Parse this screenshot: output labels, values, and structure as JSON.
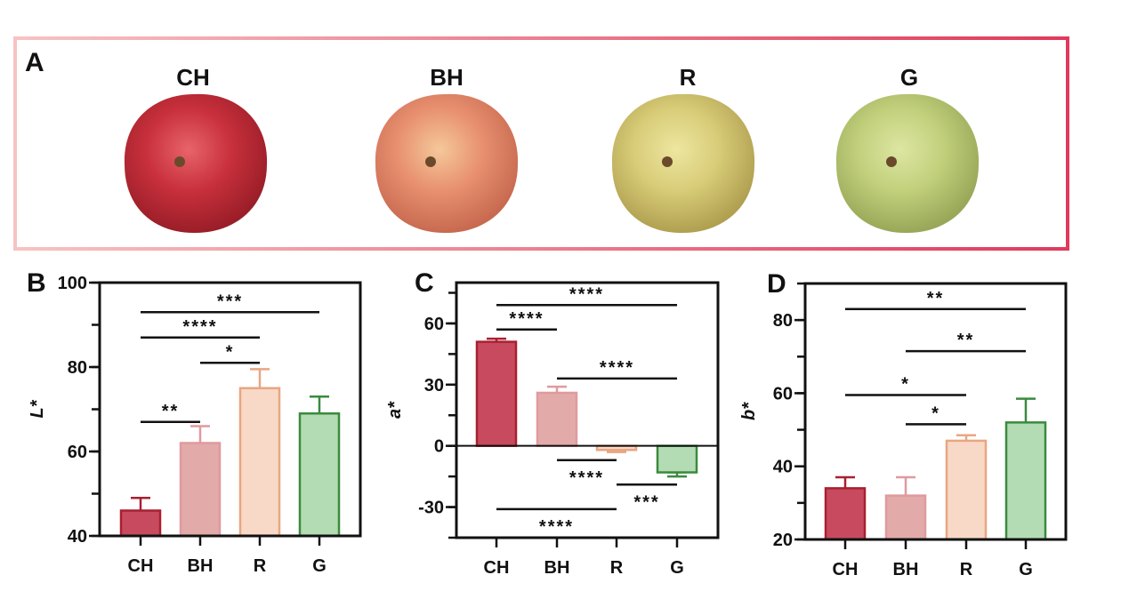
{
  "panel_a": {
    "label": "A",
    "samples": [
      {
        "name": "CH",
        "colors": [
          "#e8646a",
          "#c8303c",
          "#9a1e28"
        ]
      },
      {
        "name": "BH",
        "colors": [
          "#f4c89a",
          "#e89070",
          "#c86a50"
        ]
      },
      {
        "name": "R",
        "colors": [
          "#eee6a0",
          "#d8cc78",
          "#b0a050"
        ]
      },
      {
        "name": "G",
        "colors": [
          "#dde6a2",
          "#c2d07c",
          "#98a858"
        ]
      }
    ],
    "border_colors": [
      "#f7c3c3",
      "#e03a5c"
    ]
  },
  "series_colors": {
    "CH": {
      "fill": "#c84a5e",
      "stroke": "#a82030"
    },
    "BH": {
      "fill": "#e3aaaa",
      "stroke": "#e09a9e"
    },
    "R": {
      "fill": "#f8d8c6",
      "stroke": "#e8a682"
    },
    "G": {
      "fill": "#b4dcb4",
      "stroke": "#3a8a3e"
    }
  },
  "chart_data": [
    {
      "panel": "B",
      "type": "bar",
      "ylabel": "L*",
      "categories": [
        "CH",
        "BH",
        "R",
        "G"
      ],
      "values": [
        46,
        62,
        75,
        69
      ],
      "error": [
        [
          43,
          49
        ],
        [
          58.5,
          66
        ],
        [
          70.5,
          79.5
        ],
        [
          65.5,
          73
        ]
      ],
      "ylim": [
        40,
        100
      ],
      "yticks": [
        40,
        60,
        80,
        100
      ],
      "minor_step": 10,
      "significance": [
        {
          "from": "CH",
          "to": "BH",
          "y": 67,
          "label": "**",
          "label_pos": "above"
        },
        {
          "from": "BH",
          "to": "R",
          "y": 81,
          "label": "*",
          "label_pos": "above"
        },
        {
          "from": "CH",
          "to": "R",
          "y": 87,
          "label": "****",
          "label_pos": "above"
        },
        {
          "from": "CH",
          "to": "G",
          "y": 93,
          "label": "***",
          "label_pos": "above"
        }
      ]
    },
    {
      "panel": "C",
      "type": "bar",
      "ylabel": "a*",
      "categories": [
        "CH",
        "BH",
        "R",
        "G"
      ],
      "values": [
        51,
        26,
        -2,
        -13
      ],
      "error": [
        [
          49.5,
          52.5
        ],
        [
          22,
          29
        ],
        [
          -3,
          -1.5
        ],
        [
          -15,
          -13
        ]
      ],
      "ylim": [
        -45,
        80
      ],
      "yticks": [
        -30,
        0,
        30,
        60
      ],
      "minor_step": 15,
      "significance": [
        {
          "from": "CH",
          "to": "G",
          "y": 69,
          "label": "****",
          "label_pos": "above"
        },
        {
          "from": "CH",
          "to": "BH",
          "y": 57,
          "label": "****",
          "label_pos": "above"
        },
        {
          "from": "BH",
          "to": "G",
          "y": 33,
          "label": "****",
          "label_pos": "above"
        },
        {
          "from": "BH",
          "to": "R",
          "y": -7,
          "label": "****",
          "label_pos": "below"
        },
        {
          "from": "R",
          "to": "G",
          "y": -19,
          "label": "***",
          "label_pos": "below"
        },
        {
          "from": "CH",
          "to": "R",
          "y": -31,
          "label": "****",
          "label_pos": "below"
        }
      ]
    },
    {
      "panel": "D",
      "type": "bar",
      "ylabel": "b*",
      "categories": [
        "CH",
        "BH",
        "R",
        "G"
      ],
      "values": [
        34,
        32,
        47,
        52
      ],
      "error": [
        [
          31,
          37
        ],
        [
          27,
          37
        ],
        [
          45.5,
          48.5
        ],
        [
          45.5,
          58.5
        ]
      ],
      "ylim": [
        20,
        90
      ],
      "yticks": [
        20,
        40,
        60,
        80
      ],
      "minor_step": 10,
      "significance": [
        {
          "from": "CH",
          "to": "G",
          "y": 83,
          "label": "**",
          "label_pos": "above"
        },
        {
          "from": "BH",
          "to": "G",
          "y": 71.5,
          "label": "**",
          "label_pos": "above"
        },
        {
          "from": "CH",
          "to": "R",
          "y": 59.5,
          "label": "*",
          "label_pos": "above"
        },
        {
          "from": "BH",
          "to": "R",
          "y": 51.5,
          "label": "*",
          "label_pos": "above"
        }
      ]
    }
  ]
}
